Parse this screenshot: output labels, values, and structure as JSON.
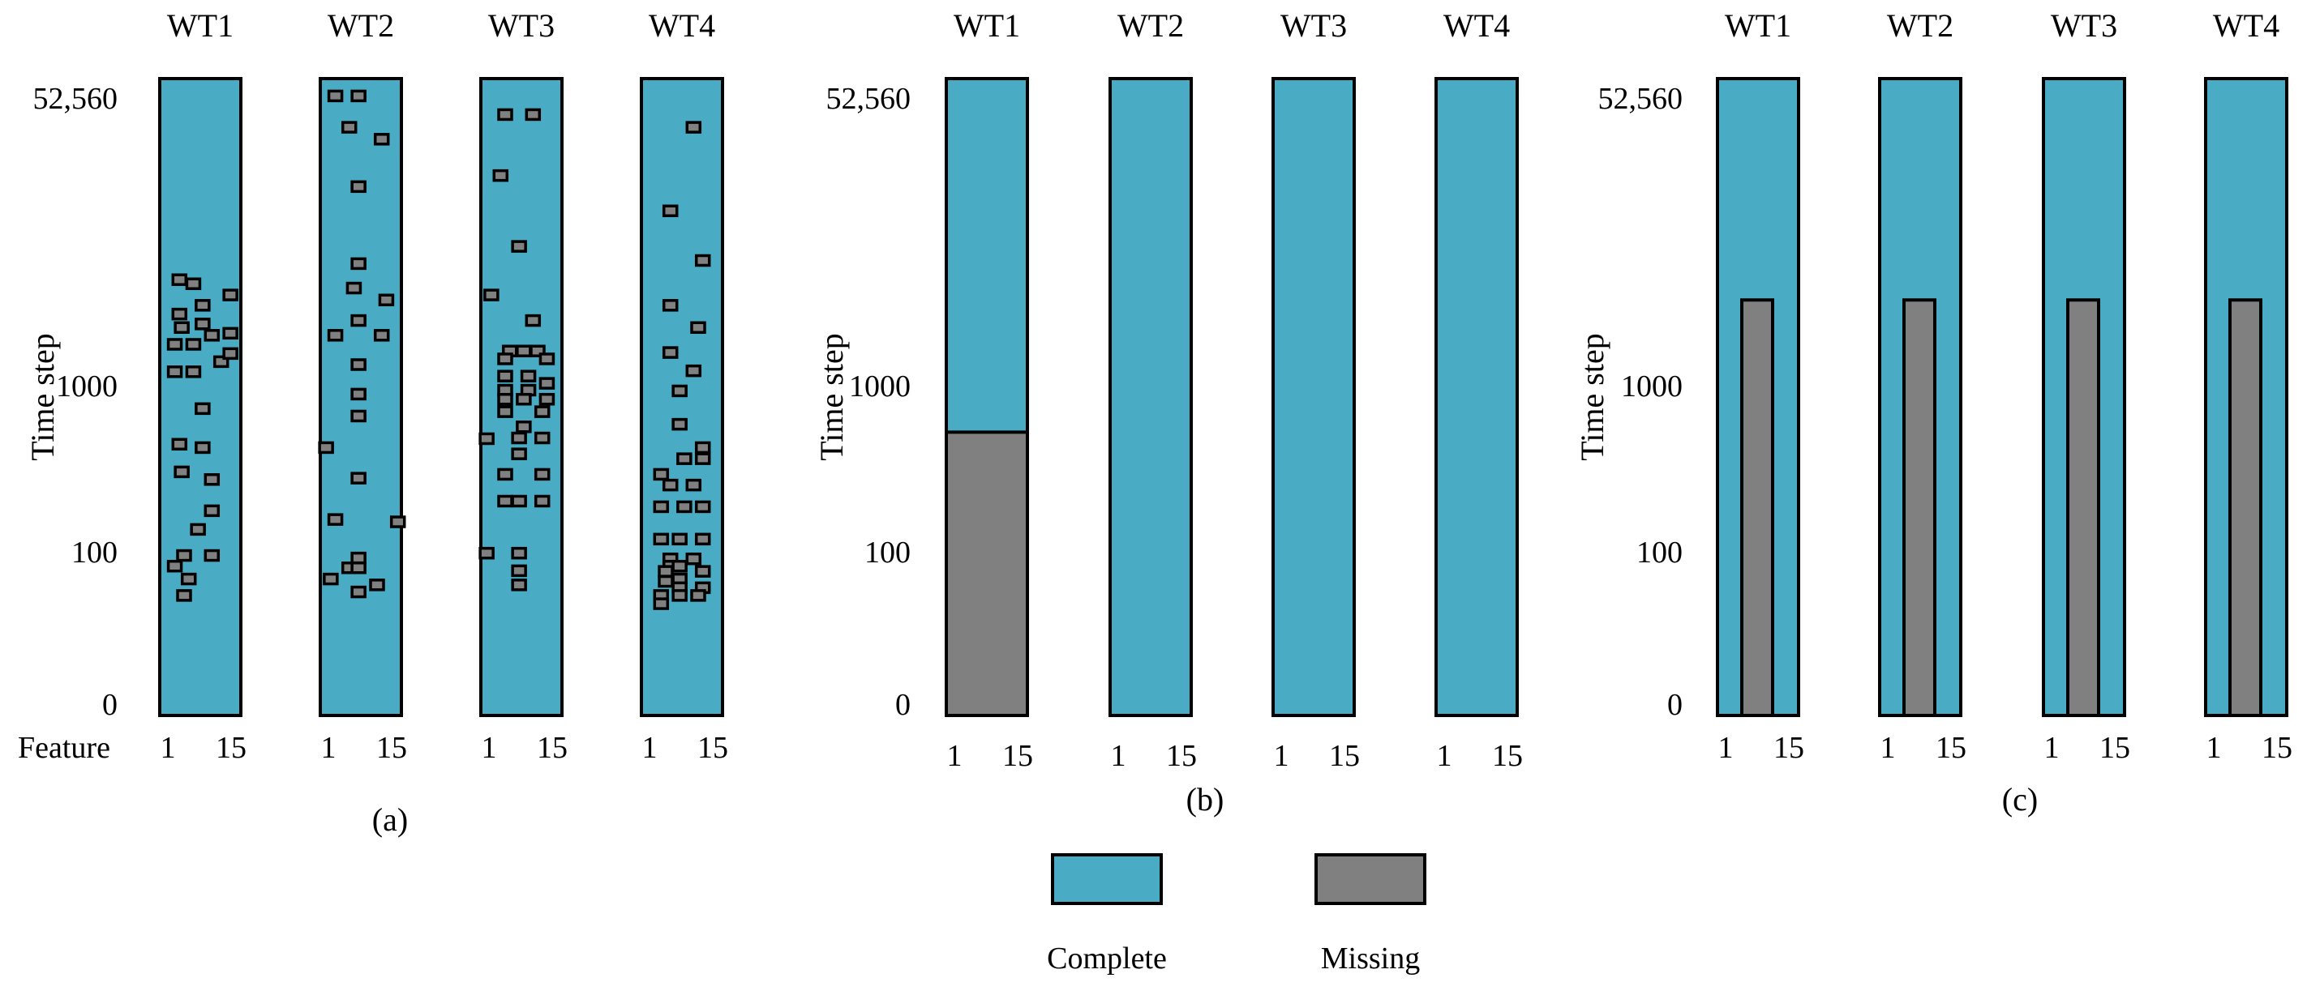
{
  "colors": {
    "complete": "#4aabc4",
    "missing": "#808080",
    "outline": "#000000"
  },
  "common": {
    "column_labels": [
      "WT1",
      "WT2",
      "WT3",
      "WT4"
    ],
    "feature_axis": {
      "label": "Feature",
      "tick_min": "1",
      "tick_max": "15"
    },
    "time_axis": {
      "label": "Time step",
      "ticks": [
        "52,560",
        "1000",
        "100",
        "0"
      ]
    }
  },
  "panels": {
    "a": {
      "caption": "(a)",
      "description": "Randomly scattered missing entries",
      "missing_cells": [
        [
          [
            14.5,
            1950
          ],
          [
            2.5,
            1690
          ],
          [
            6.5,
            1690
          ],
          [
            2.5,
            1185
          ],
          [
            6.5,
            1185
          ],
          [
            8.5,
            720
          ],
          [
            3.5,
            440
          ],
          [
            8.5,
            420
          ],
          [
            4.0,
            300
          ],
          [
            10.5,
            270
          ],
          [
            10.5,
            175
          ],
          [
            7.5,
            135
          ],
          [
            4.5,
            88
          ],
          [
            10.5,
            88
          ],
          [
            2.5,
            65
          ],
          [
            5.5,
            45
          ],
          [
            4.5,
            28
          ],
          [
            14.5,
            3200
          ],
          [
            4.0,
            2100
          ],
          [
            10.5,
            1900
          ],
          [
            8.5,
            2800
          ],
          [
            3.5,
            2500
          ],
          [
            8.5,
            2200
          ],
          [
            3.5,
            3900
          ],
          [
            6.5,
            3700
          ],
          [
            12.5,
            1350
          ],
          [
            14.5,
            1500
          ]
        ],
        [
          [
            2.5,
            42000
          ],
          [
            7.5,
            42000
          ],
          [
            5.5,
            28000
          ],
          [
            12.5,
            24000
          ],
          [
            7.5,
            13000
          ],
          [
            7.5,
            4800
          ],
          [
            6.5,
            3500
          ],
          [
            7.5,
            2300
          ],
          [
            13.5,
            3000
          ],
          [
            2.5,
            1900
          ],
          [
            12.5,
            1900
          ],
          [
            7.5,
            1300
          ],
          [
            7.5,
            880
          ],
          [
            7.5,
            650
          ],
          [
            0.5,
            420
          ],
          [
            7.5,
            275
          ],
          [
            2.5,
            155
          ],
          [
            16,
            150
          ],
          [
            7.5,
            82
          ],
          [
            5.5,
            62
          ],
          [
            7.5,
            62
          ],
          [
            1.5,
            45
          ],
          [
            11.5,
            38
          ],
          [
            7.5,
            31
          ]
        ],
        [
          [
            4.5,
            33000
          ],
          [
            10.5,
            33000
          ],
          [
            3.5,
            15000
          ],
          [
            7.5,
            6000
          ],
          [
            1.5,
            3200
          ],
          [
            10.5,
            2300
          ],
          [
            5.5,
            1550
          ],
          [
            8.5,
            1550
          ],
          [
            11.5,
            1550
          ],
          [
            4.5,
            1400
          ],
          [
            13.5,
            1400
          ],
          [
            4.5,
            1120
          ],
          [
            9.5,
            1120
          ],
          [
            13.5,
            1020
          ],
          [
            4.5,
            930
          ],
          [
            9.5,
            930
          ],
          [
            4.5,
            820
          ],
          [
            8.5,
            820
          ],
          [
            13.5,
            820
          ],
          [
            4.5,
            690
          ],
          [
            12.5,
            690
          ],
          [
            8.5,
            560
          ],
          [
            0.5,
            475
          ],
          [
            7.5,
            480
          ],
          [
            12.5,
            480
          ],
          [
            7.5,
            385
          ],
          [
            4.5,
            290
          ],
          [
            12.5,
            290
          ],
          [
            4.5,
            200
          ],
          [
            7.5,
            200
          ],
          [
            12.5,
            200
          ],
          [
            0.5,
            94
          ],
          [
            7.5,
            94
          ],
          [
            7.5,
            57
          ],
          [
            7.5,
            38
          ]
        ],
        [
          [
            10.5,
            28000
          ],
          [
            5.5,
            9500
          ],
          [
            12.5,
            5000
          ],
          [
            5.5,
            2800
          ],
          [
            11.5,
            2100
          ],
          [
            5.5,
            1520
          ],
          [
            10.5,
            1200
          ],
          [
            7.5,
            920
          ],
          [
            7.5,
            580
          ],
          [
            12.5,
            420
          ],
          [
            8.5,
            360
          ],
          [
            12.5,
            360
          ],
          [
            3.5,
            290
          ],
          [
            5.5,
            250
          ],
          [
            10.5,
            250
          ],
          [
            3.5,
            185
          ],
          [
            8.5,
            185
          ],
          [
            12.5,
            185
          ],
          [
            3.5,
            118
          ],
          [
            7.5,
            118
          ],
          [
            12.5,
            118
          ],
          [
            5.5,
            80
          ],
          [
            10.5,
            80
          ],
          [
            5.5,
            65
          ],
          [
            7.5,
            65
          ],
          [
            4.5,
            56
          ],
          [
            12.5,
            56
          ],
          [
            7.5,
            45
          ],
          [
            4.5,
            42
          ],
          [
            7.5,
            35
          ],
          [
            12.5,
            35
          ],
          [
            3.5,
            28
          ],
          [
            7.5,
            28
          ],
          [
            11.5,
            28
          ],
          [
            3.5,
            22
          ]
        ]
      ]
    },
    "b": {
      "caption": "(b)",
      "description": "WT1 missing over a whole time range; WT2-WT4 complete",
      "blocks": [
        {
          "turbine": "WT1",
          "feature_range": [
            1,
            15
          ],
          "time_range": [
            0,
            520
          ]
        }
      ]
    },
    "c": {
      "caption": "(c)",
      "description": "Same feature range missing across all turbines over a time range",
      "blocks": [
        {
          "turbine": "WT1",
          "feature_range": [
            5,
            10
          ],
          "time_range": [
            0,
            3000
          ]
        },
        {
          "turbine": "WT2",
          "feature_range": [
            5,
            10
          ],
          "time_range": [
            0,
            3000
          ]
        },
        {
          "turbine": "WT3",
          "feature_range": [
            5,
            10
          ],
          "time_range": [
            0,
            3000
          ]
        },
        {
          "turbine": "WT4",
          "feature_range": [
            5,
            10
          ],
          "time_range": [
            0,
            3000
          ]
        }
      ]
    }
  },
  "legend": {
    "complete_label": "Complete",
    "missing_label": "Missing"
  }
}
